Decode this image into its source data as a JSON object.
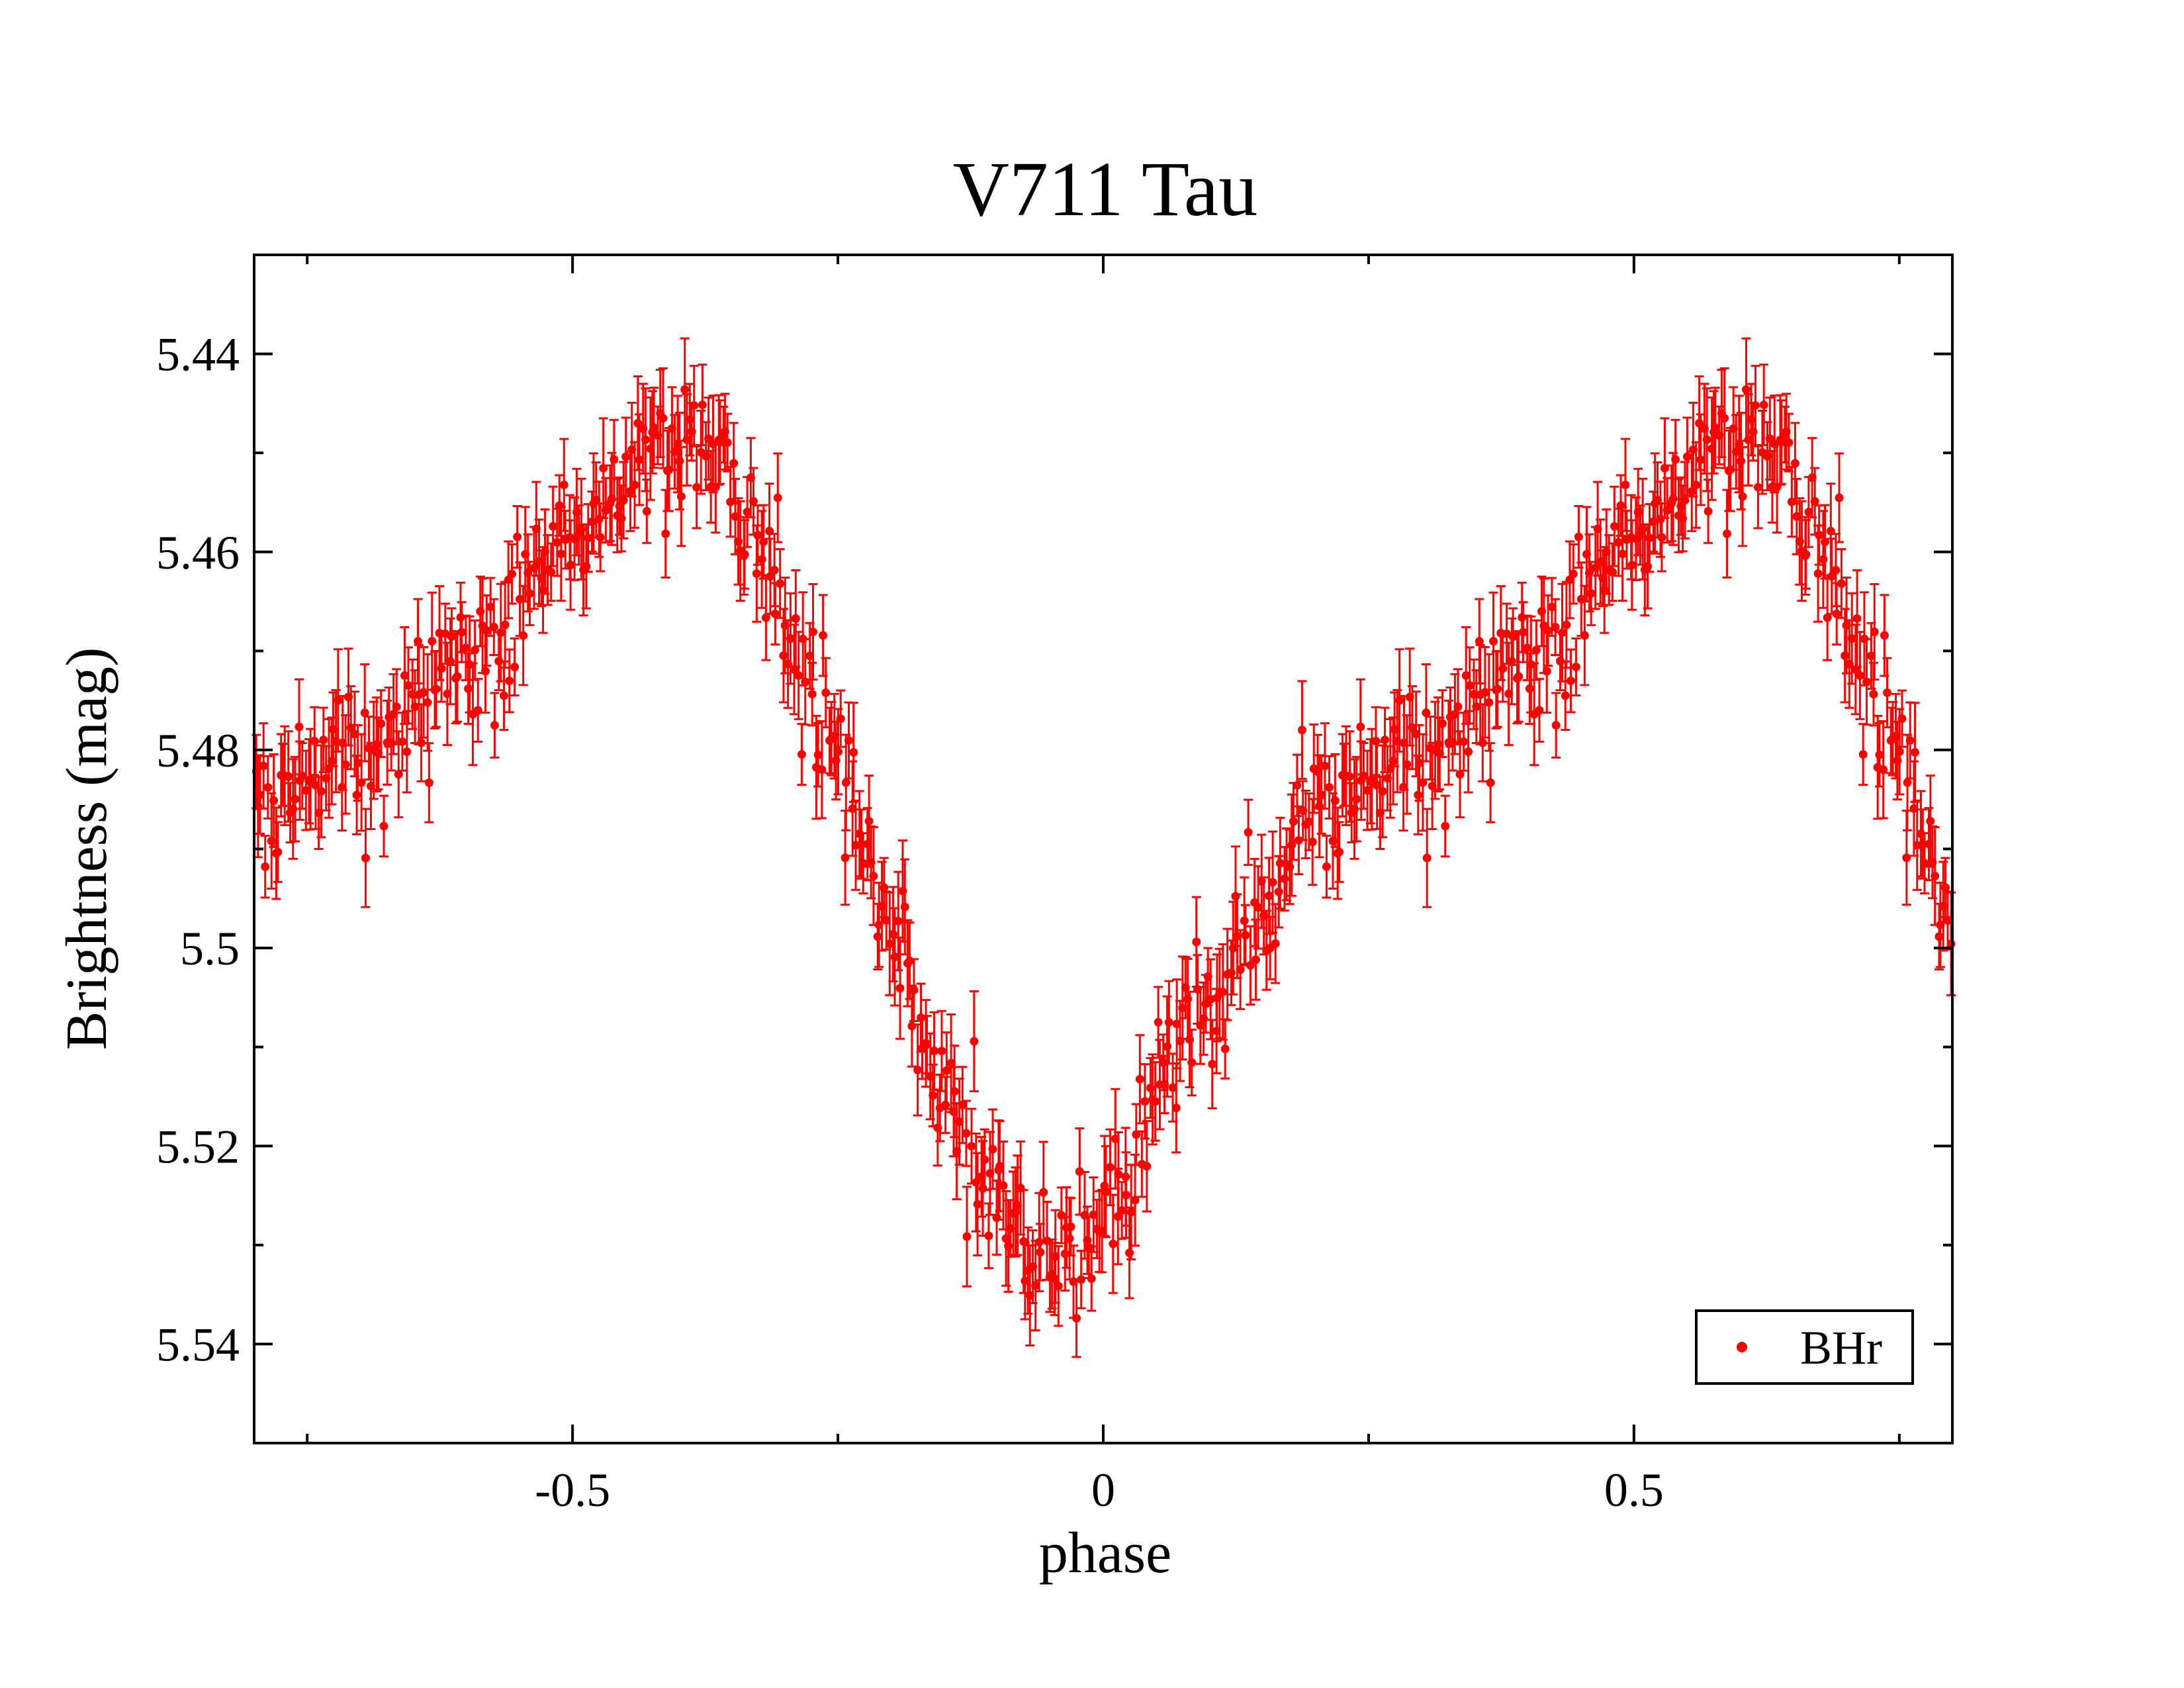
{
  "chart_data": {
    "type": "scatter",
    "title": "V711 Tau",
    "xlabel": "phase",
    "ylabel": "Brightness (mag)",
    "xlim": [
      -0.8,
      0.8
    ],
    "ylim": [
      5.55,
      5.43
    ],
    "y_inverted": true,
    "x_major_ticks": [
      -0.5,
      0,
      0.5
    ],
    "x_major_tick_labels": [
      "-0.5",
      "0",
      "0.5"
    ],
    "x_minor_ticks": [
      -0.75,
      -0.25,
      0.25,
      0.75
    ],
    "y_major_ticks": [
      5.44,
      5.46,
      5.48,
      5.5,
      5.52,
      5.54
    ],
    "y_major_tick_labels": [
      "5.44",
      "5.46",
      "5.48",
      "5.5",
      "5.52",
      "5.54"
    ],
    "y_minor_ticks": [
      5.45,
      5.47,
      5.49,
      5.51,
      5.53
    ],
    "grid": false,
    "legend_position": "bottom-right",
    "series": [
      {
        "name": "BHr",
        "color": "#ff0000",
        "marker": "circle",
        "error_bars": true,
        "typical_error": 0.004,
        "scatter_mag": 0.0035,
        "points_per_cycle": 420,
        "phase_range": [
          -0.8,
          0.8
        ],
        "light_curve_knots": [
          [
            -0.8,
            5.486
          ],
          [
            -0.7,
            5.48
          ],
          [
            -0.6,
            5.472
          ],
          [
            -0.5,
            5.458
          ],
          [
            -0.42,
            5.449
          ],
          [
            -0.38,
            5.448
          ],
          [
            -0.33,
            5.457
          ],
          [
            -0.28,
            5.472
          ],
          [
            -0.23,
            5.486
          ],
          [
            -0.2,
            5.498
          ],
          [
            -0.15,
            5.515
          ],
          [
            -0.1,
            5.527
          ],
          [
            -0.05,
            5.532
          ],
          [
            -0.02,
            5.53
          ],
          [
            0.02,
            5.525
          ],
          [
            0.06,
            5.513
          ],
          [
            0.1,
            5.505
          ],
          [
            0.15,
            5.495
          ],
          [
            0.2,
            5.486
          ]
        ]
      }
    ]
  }
}
